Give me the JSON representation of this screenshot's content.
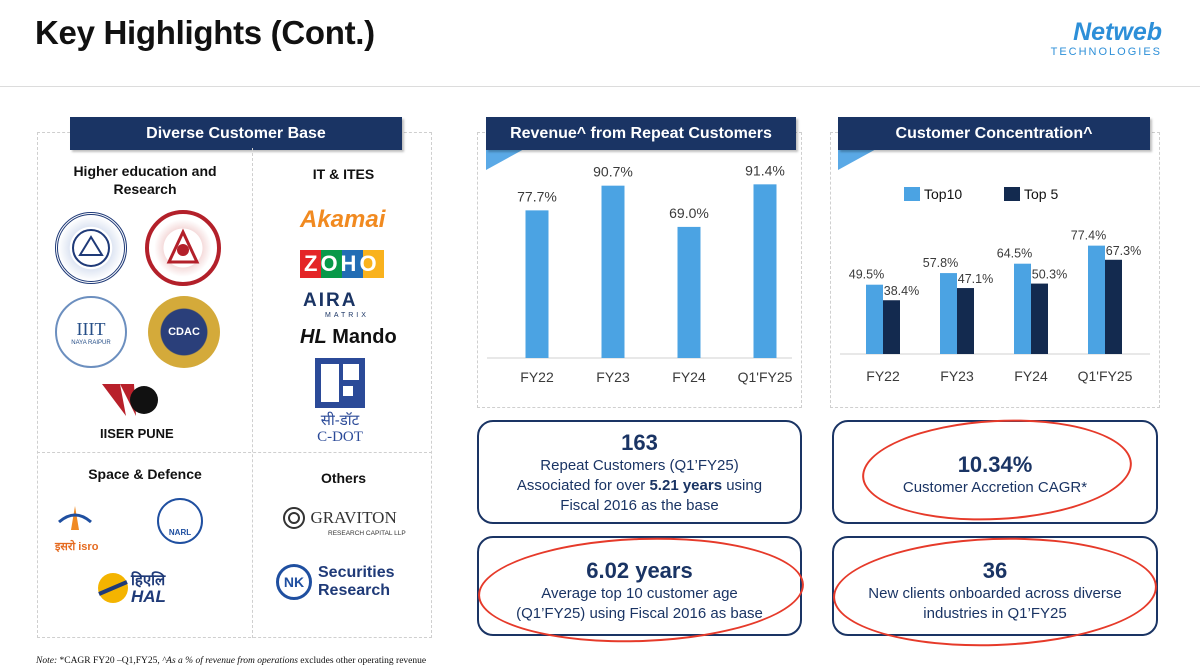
{
  "header": {
    "title": "Key Highlights (Cont.)",
    "logo_name": "Netweb",
    "logo_sub": "TECHNOLOGIES"
  },
  "customer_base": {
    "banner": "Diverse Customer Base",
    "higher_ed": {
      "title_line1": "Higher education and",
      "title_line2": "Research",
      "iit_label": "IIIT",
      "iit_sub": "NAYA RAIPUR",
      "cdac_label": "CDAC",
      "iiser_label": "IISER PUNE"
    },
    "it_ites": {
      "title": "IT & ITES",
      "akamai": "Akamai",
      "zoho": "ZOHO",
      "aira": "AIRA",
      "aira_sub": "MATRIX",
      "mando": "Mando",
      "mando_prefix": "HL",
      "cdot_hindi": "सी-डॉट",
      "cdot": "C-DOT"
    },
    "space_defence": {
      "title": "Space & Defence",
      "isro": "इसरो isro",
      "narl": "NARL",
      "hal_hindi": "हिएलि",
      "hal": "HAL"
    },
    "others": {
      "title": "Others",
      "graviton": "GRAVITON",
      "graviton_sub": "RESEARCH CAPITAL LLP",
      "nk_badge": "NK",
      "nk_line1": "Securities",
      "nk_line2": "Research"
    }
  },
  "repeat_revenue": {
    "banner": "Revenue^ from Repeat Customers"
  },
  "concentration": {
    "banner": "Customer Concentration^"
  },
  "chart_data": [
    {
      "type": "bar",
      "title": "Revenue^ from Repeat Customers",
      "categories": [
        "FY22",
        "FY23",
        "FY24",
        "Q1'FY25"
      ],
      "values": [
        77.7,
        90.7,
        69.0,
        91.4
      ],
      "labels": [
        "77.7%",
        "90.7%",
        "69.0%",
        "91.4%"
      ],
      "unit": "%",
      "ylim": [
        0,
        100
      ],
      "color": "#4ba3e3"
    },
    {
      "type": "bar",
      "title": "Customer Concentration^",
      "categories": [
        "FY22",
        "FY23",
        "FY24",
        "Q1'FY25"
      ],
      "series": [
        {
          "name": "Top10",
          "values": [
            49.5,
            57.8,
            64.5,
            77.4
          ],
          "labels": [
            "49.5%",
            "57.8%",
            "64.5%",
            "77.4%"
          ],
          "color": "#4ba3e3"
        },
        {
          "name": "Top 5",
          "values": [
            38.4,
            47.1,
            50.3,
            67.3
          ],
          "labels": [
            "38.4%",
            "47.1%",
            "50.3%",
            "67.3%"
          ],
          "color": "#132a4f"
        }
      ],
      "legend": "top",
      "unit": "%",
      "ylim": [
        0,
        100
      ]
    }
  ],
  "stats": {
    "repeat": {
      "big": "163",
      "line1": "Repeat Customers (Q1’FY25)",
      "line2_pre": "Associated for over ",
      "line2_bold": "5.21 years",
      "line2_post": " using",
      "line3": "Fiscal 2016 as the base"
    },
    "age": {
      "big": "6.02 years",
      "line1": "Average top 10 customer age",
      "line2": "(Q1’FY25) using Fiscal 2016 as base"
    },
    "cagr": {
      "big": "10.34%",
      "line1": "Customer Accretion CAGR*"
    },
    "new_clients": {
      "big": "36",
      "line1": "New clients onboarded across diverse",
      "line2": "industries in Q1’FY25"
    }
  },
  "note": {
    "label": "Note:",
    "text1": " *CAGR FY20 –Q1,FY25, ",
    "text2": "^As a % of revenue from operations",
    "text3": " excludes other operating revenue"
  },
  "colors": {
    "navy": "#1a3464",
    "blue": "#4ba3e3",
    "dark": "#132a4f",
    "red": "#e63a2a"
  }
}
